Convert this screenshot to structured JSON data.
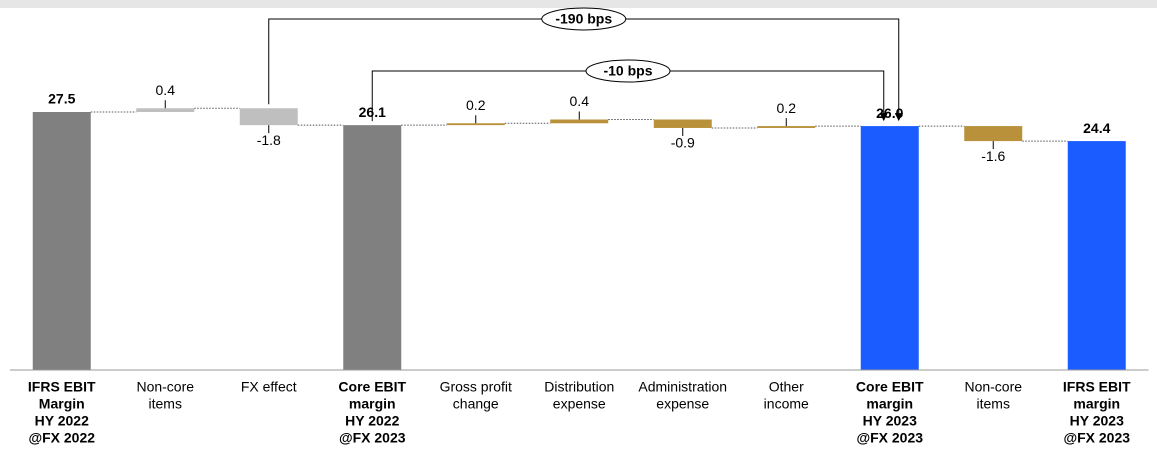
{
  "chart_data": {
    "type": "waterfall",
    "categories": [
      [
        "IFRS EBIT",
        "Margin",
        "HY 2022",
        "@FX 2022"
      ],
      [
        "Non-core",
        "items"
      ],
      [
        "FX effect"
      ],
      [
        "Core EBIT",
        "margin",
        "HY 2022",
        "@FX 2023"
      ],
      [
        "Gross profit",
        "change"
      ],
      [
        "Distribution",
        "expense"
      ],
      [
        "Administration",
        "expense"
      ],
      [
        "Other",
        "income"
      ],
      [
        "Core EBIT",
        "margin",
        "HY 2023",
        "@FX 2023"
      ],
      [
        "Non-core",
        "items"
      ],
      [
        "IFRS EBIT",
        "margin",
        "HY 2023",
        "@FX 2023"
      ]
    ],
    "values": [
      27.5,
      0.4,
      -1.8,
      26.1,
      0.2,
      0.4,
      -0.9,
      0.2,
      26.0,
      -1.6,
      24.4
    ],
    "value_labels": [
      "27.5",
      "0.4",
      "-1.8",
      "26.1",
      "0.2",
      "0.4",
      "-0.9",
      "0.2",
      "26.0",
      "-1.6",
      "24.4"
    ],
    "totals": [
      true,
      false,
      false,
      true,
      false,
      false,
      false,
      false,
      true,
      false,
      true
    ],
    "colors": [
      "#808080",
      "#bfbfbf",
      "#bfbfbf",
      "#808080",
      "#b8913a",
      "#b8913a",
      "#b8913a",
      "#b8913a",
      "#1a5cff",
      "#b8913a",
      "#1a5cff"
    ],
    "ylim": [
      0,
      38
    ],
    "annotations": [
      {
        "text": "-190 bps",
        "from": 2,
        "to": 8
      },
      {
        "text": "-10 bps",
        "from": 3,
        "to": 8
      }
    ]
  }
}
